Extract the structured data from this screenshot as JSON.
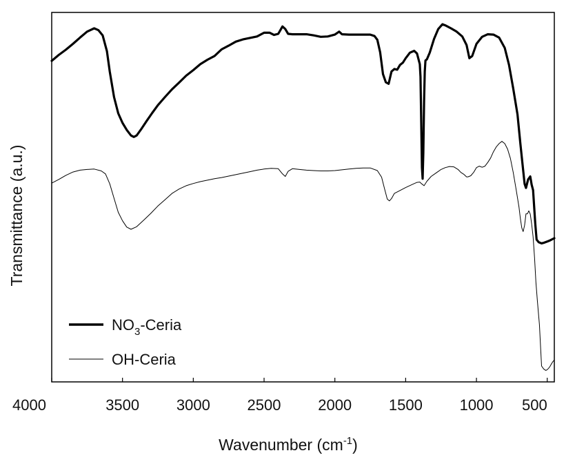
{
  "chart_data": {
    "type": "line",
    "xlabel_main": "Wavenumber (cm",
    "xlabel_sup": "-1",
    "xlabel_close": ")",
    "ylabel": "Transmittance (a.u.)",
    "xlim": [
      4000,
      450
    ],
    "x_ticks": [
      "4000",
      "3500",
      "3000",
      "2500",
      "2000",
      "1500",
      "1000",
      "500"
    ],
    "legend_position": "bottom-left",
    "series": [
      {
        "name_main": "NO",
        "name_sub": "3",
        "name_tail": "-Ceria",
        "color": "#000000",
        "points": [
          [
            4000,
            0.869
          ],
          [
            3950,
            0.885
          ],
          [
            3900,
            0.899
          ],
          [
            3850,
            0.915
          ],
          [
            3800,
            0.932
          ],
          [
            3750,
            0.948
          ],
          [
            3700,
            0.957
          ],
          [
            3670,
            0.952
          ],
          [
            3640,
            0.938
          ],
          [
            3610,
            0.895
          ],
          [
            3590,
            0.84
          ],
          [
            3560,
            0.771
          ],
          [
            3530,
            0.727
          ],
          [
            3500,
            0.701
          ],
          [
            3470,
            0.682
          ],
          [
            3440,
            0.667
          ],
          [
            3420,
            0.663
          ],
          [
            3400,
            0.667
          ],
          [
            3370,
            0.683
          ],
          [
            3330,
            0.706
          ],
          [
            3290,
            0.728
          ],
          [
            3250,
            0.749
          ],
          [
            3200,
            0.771
          ],
          [
            3150,
            0.792
          ],
          [
            3100,
            0.81
          ],
          [
            3050,
            0.829
          ],
          [
            3000,
            0.844
          ],
          [
            2950,
            0.86
          ],
          [
            2900,
            0.872
          ],
          [
            2850,
            0.882
          ],
          [
            2800,
            0.9
          ],
          [
            2750,
            0.91
          ],
          [
            2700,
            0.921
          ],
          [
            2650,
            0.927
          ],
          [
            2600,
            0.931
          ],
          [
            2550,
            0.935
          ],
          [
            2500,
            0.945
          ],
          [
            2460,
            0.945
          ],
          [
            2430,
            0.939
          ],
          [
            2400,
            0.942
          ],
          [
            2370,
            0.962
          ],
          [
            2350,
            0.955
          ],
          [
            2330,
            0.942
          ],
          [
            2300,
            0.941
          ],
          [
            2250,
            0.941
          ],
          [
            2200,
            0.941
          ],
          [
            2150,
            0.938
          ],
          [
            2100,
            0.934
          ],
          [
            2050,
            0.935
          ],
          [
            2000,
            0.94
          ],
          [
            1970,
            0.948
          ],
          [
            1950,
            0.941
          ],
          [
            1900,
            0.94
          ],
          [
            1850,
            0.94
          ],
          [
            1800,
            0.94
          ],
          [
            1750,
            0.94
          ],
          [
            1720,
            0.936
          ],
          [
            1700,
            0.926
          ],
          [
            1680,
            0.892
          ],
          [
            1660,
            0.833
          ],
          [
            1640,
            0.811
          ],
          [
            1620,
            0.807
          ],
          [
            1600,
            0.84
          ],
          [
            1580,
            0.847
          ],
          [
            1560,
            0.845
          ],
          [
            1540,
            0.858
          ],
          [
            1520,
            0.864
          ],
          [
            1500,
            0.876
          ],
          [
            1470,
            0.891
          ],
          [
            1440,
            0.896
          ],
          [
            1420,
            0.889
          ],
          [
            1400,
            0.86
          ],
          [
            1395,
            0.826
          ],
          [
            1390,
            0.7
          ],
          [
            1385,
            0.58
          ],
          [
            1380,
            0.55
          ],
          [
            1375,
            0.62
          ],
          [
            1370,
            0.76
          ],
          [
            1365,
            0.84
          ],
          [
            1360,
            0.87
          ],
          [
            1350,
            0.873
          ],
          [
            1330,
            0.891
          ],
          [
            1300,
            0.928
          ],
          [
            1270,
            0.955
          ],
          [
            1240,
            0.968
          ],
          [
            1220,
            0.965
          ],
          [
            1180,
            0.957
          ],
          [
            1140,
            0.948
          ],
          [
            1100,
            0.935
          ],
          [
            1070,
            0.912
          ],
          [
            1050,
            0.876
          ],
          [
            1030,
            0.882
          ],
          [
            1000,
            0.915
          ],
          [
            960,
            0.934
          ],
          [
            920,
            0.941
          ],
          [
            880,
            0.94
          ],
          [
            840,
            0.932
          ],
          [
            800,
            0.904
          ],
          [
            770,
            0.858
          ],
          [
            740,
            0.794
          ],
          [
            710,
            0.724
          ],
          [
            690,
            0.646
          ],
          [
            670,
            0.573
          ],
          [
            660,
            0.536
          ],
          [
            650,
            0.525
          ],
          [
            635,
            0.548
          ],
          [
            620,
            0.556
          ],
          [
            610,
            0.534
          ],
          [
            600,
            0.519
          ],
          [
            585,
            0.43
          ],
          [
            575,
            0.385
          ],
          [
            560,
            0.378
          ],
          [
            540,
            0.375
          ],
          [
            520,
            0.377
          ],
          [
            500,
            0.38
          ],
          [
            480,
            0.383
          ],
          [
            460,
            0.387
          ],
          [
            450,
            0.389
          ]
        ]
      },
      {
        "name": "OH-Ceria",
        "color": "#000000",
        "points": [
          [
            4000,
            0.538
          ],
          [
            3950,
            0.548
          ],
          [
            3900,
            0.559
          ],
          [
            3850,
            0.568
          ],
          [
            3800,
            0.573
          ],
          [
            3750,
            0.575
          ],
          [
            3700,
            0.576
          ],
          [
            3650,
            0.571
          ],
          [
            3620,
            0.563
          ],
          [
            3590,
            0.536
          ],
          [
            3560,
            0.497
          ],
          [
            3530,
            0.459
          ],
          [
            3500,
            0.436
          ],
          [
            3470,
            0.419
          ],
          [
            3440,
            0.413
          ],
          [
            3400,
            0.42
          ],
          [
            3350,
            0.438
          ],
          [
            3300,
            0.456
          ],
          [
            3250,
            0.476
          ],
          [
            3200,
            0.493
          ],
          [
            3150,
            0.51
          ],
          [
            3100,
            0.522
          ],
          [
            3050,
            0.531
          ],
          [
            3000,
            0.537
          ],
          [
            2950,
            0.542
          ],
          [
            2900,
            0.546
          ],
          [
            2850,
            0.55
          ],
          [
            2800,
            0.553
          ],
          [
            2750,
            0.557
          ],
          [
            2700,
            0.561
          ],
          [
            2650,
            0.565
          ],
          [
            2600,
            0.569
          ],
          [
            2550,
            0.573
          ],
          [
            2500,
            0.576
          ],
          [
            2450,
            0.578
          ],
          [
            2400,
            0.577
          ],
          [
            2370,
            0.563
          ],
          [
            2350,
            0.556
          ],
          [
            2330,
            0.57
          ],
          [
            2300,
            0.577
          ],
          [
            2250,
            0.575
          ],
          [
            2200,
            0.573
          ],
          [
            2150,
            0.572
          ],
          [
            2100,
            0.571
          ],
          [
            2050,
            0.571
          ],
          [
            2000,
            0.572
          ],
          [
            1950,
            0.574
          ],
          [
            1900,
            0.576
          ],
          [
            1850,
            0.578
          ],
          [
            1800,
            0.579
          ],
          [
            1750,
            0.579
          ],
          [
            1700,
            0.572
          ],
          [
            1670,
            0.554
          ],
          [
            1650,
            0.524
          ],
          [
            1630,
            0.495
          ],
          [
            1615,
            0.49
          ],
          [
            1600,
            0.496
          ],
          [
            1580,
            0.51
          ],
          [
            1550,
            0.516
          ],
          [
            1500,
            0.526
          ],
          [
            1450,
            0.535
          ],
          [
            1420,
            0.54
          ],
          [
            1400,
            0.541
          ],
          [
            1390,
            0.537
          ],
          [
            1370,
            0.531
          ],
          [
            1350,
            0.543
          ],
          [
            1320,
            0.556
          ],
          [
            1280,
            0.567
          ],
          [
            1250,
            0.575
          ],
          [
            1220,
            0.58
          ],
          [
            1190,
            0.583
          ],
          [
            1160,
            0.582
          ],
          [
            1130,
            0.575
          ],
          [
            1110,
            0.567
          ],
          [
            1090,
            0.562
          ],
          [
            1070,
            0.555
          ],
          [
            1060,
            0.555
          ],
          [
            1040,
            0.558
          ],
          [
            1020,
            0.567
          ],
          [
            1000,
            0.58
          ],
          [
            980,
            0.584
          ],
          [
            960,
            0.581
          ],
          [
            940,
            0.584
          ],
          [
            920,
            0.594
          ],
          [
            900,
            0.606
          ],
          [
            880,
            0.623
          ],
          [
            860,
            0.636
          ],
          [
            840,
            0.645
          ],
          [
            820,
            0.651
          ],
          [
            800,
            0.645
          ],
          [
            780,
            0.63
          ],
          [
            760,
            0.605
          ],
          [
            740,
            0.567
          ],
          [
            720,
            0.521
          ],
          [
            700,
            0.474
          ],
          [
            690,
            0.443
          ],
          [
            680,
            0.417
          ],
          [
            670,
            0.407
          ],
          [
            660,
            0.424
          ],
          [
            650,
            0.455
          ],
          [
            640,
            0.455
          ],
          [
            630,
            0.463
          ],
          [
            620,
            0.454
          ],
          [
            610,
            0.428
          ],
          [
            600,
            0.393
          ],
          [
            590,
            0.337
          ],
          [
            580,
            0.27
          ],
          [
            570,
            0.22
          ],
          [
            555,
            0.155
          ],
          [
            540,
            0.043
          ],
          [
            525,
            0.035
          ],
          [
            510,
            0.031
          ],
          [
            500,
            0.033
          ],
          [
            490,
            0.037
          ],
          [
            480,
            0.042
          ],
          [
            470,
            0.049
          ],
          [
            460,
            0.055
          ],
          [
            450,
            0.059
          ]
        ]
      }
    ]
  }
}
